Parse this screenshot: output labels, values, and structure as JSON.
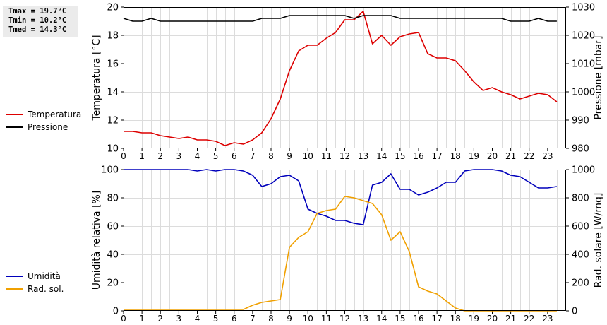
{
  "stats": {
    "tmax": "Tmax = 19.7°C",
    "tmin": "Tmin = 10.2°C",
    "tmed": "Tmed = 14.3°C"
  },
  "chart_data": [
    {
      "type": "line",
      "ylabel": "Temperatura [°C]",
      "y2label": "Pressione [mbar]",
      "ylim": [
        10,
        20
      ],
      "y2lim": [
        980,
        1030
      ],
      "xlim": [
        0,
        24
      ],
      "yticks": [
        "10",
        "12",
        "14",
        "16",
        "18",
        "20"
      ],
      "y2ticks": [
        "980",
        "990",
        "1000",
        "1010",
        "1020",
        "1030"
      ],
      "xticks": [
        "0",
        "1",
        "2",
        "3",
        "4",
        "5",
        "6",
        "7",
        "8",
        "9",
        "10",
        "11",
        "12",
        "13",
        "14",
        "15",
        "16",
        "17",
        "18",
        "19",
        "20",
        "21",
        "22",
        "23"
      ],
      "grid": true,
      "legend_placement": "left",
      "series": [
        {
          "name": "Temperatura",
          "color": "#dd0000",
          "axis": "left",
          "x": [
            0,
            0.5,
            1,
            1.5,
            2,
            2.5,
            3,
            3.5,
            4,
            4.5,
            5,
            5.5,
            6,
            6.5,
            7,
            7.5,
            8,
            8.5,
            9,
            9.5,
            10,
            10.5,
            11,
            11.5,
            12,
            12.5,
            13,
            13.5,
            14,
            14.5,
            15,
            15.5,
            16,
            16.5,
            17,
            17.5,
            18,
            18.5,
            19,
            19.5,
            20,
            20.5,
            21,
            21.5,
            22,
            22.5,
            23,
            23.5
          ],
          "values": [
            11.2,
            11.2,
            11.1,
            11.1,
            10.9,
            10.8,
            10.7,
            10.8,
            10.6,
            10.6,
            10.5,
            10.2,
            10.4,
            10.3,
            10.6,
            11.1,
            12.1,
            13.5,
            15.5,
            16.9,
            17.3,
            17.3,
            17.8,
            18.2,
            19.1,
            19.1,
            19.7,
            17.4,
            18.0,
            17.3,
            17.9,
            18.1,
            18.2,
            16.7,
            16.4,
            16.4,
            16.2,
            15.5,
            14.7,
            14.1,
            14.3,
            14.0,
            13.8,
            13.5,
            13.7,
            13.9,
            13.8,
            13.3
          ]
        },
        {
          "name": "Pressione",
          "color": "#000000",
          "axis": "right",
          "x": [
            0,
            0.5,
            1,
            1.5,
            2,
            2.5,
            3,
            3.5,
            4,
            4.5,
            5,
            5.5,
            6,
            6.5,
            7,
            7.5,
            8,
            8.5,
            9,
            9.5,
            10,
            10.5,
            11,
            11.5,
            12,
            12.5,
            13,
            13.5,
            14,
            14.5,
            15,
            15.5,
            16,
            16.5,
            17,
            17.5,
            18,
            18.5,
            19,
            19.5,
            20,
            20.5,
            21,
            21.5,
            22,
            22.5,
            23,
            23.5
          ],
          "values": [
            1026,
            1025,
            1025,
            1026,
            1025,
            1025,
            1025,
            1025,
            1025,
            1025,
            1025,
            1025,
            1025,
            1025,
            1025,
            1026,
            1026,
            1026,
            1027,
            1027,
            1027,
            1027,
            1027,
            1027,
            1027,
            1026,
            1027,
            1027,
            1027,
            1027,
            1026,
            1026,
            1026,
            1026,
            1026,
            1026,
            1026,
            1026,
            1026,
            1026,
            1026,
            1026,
            1025,
            1025,
            1025,
            1026,
            1025,
            1025
          ]
        }
      ]
    },
    {
      "type": "line",
      "ylabel": "Umidità relativa [%]",
      "y2label": "Rad. solare [W/mq]",
      "ylim": [
        0,
        100
      ],
      "y2lim": [
        0,
        1000
      ],
      "xlim": [
        0,
        24
      ],
      "yticks": [
        "0",
        "20",
        "40",
        "60",
        "80",
        "100"
      ],
      "y2ticks": [
        "0",
        "200",
        "400",
        "600",
        "800",
        "1000"
      ],
      "xticks": [
        "0",
        "1",
        "2",
        "3",
        "4",
        "5",
        "6",
        "7",
        "8",
        "9",
        "10",
        "11",
        "12",
        "13",
        "14",
        "15",
        "16",
        "17",
        "18",
        "19",
        "20",
        "21",
        "22",
        "23"
      ],
      "grid": true,
      "legend_placement": "left",
      "series": [
        {
          "name": "Umidità",
          "color": "#0000bb",
          "axis": "left",
          "x": [
            0,
            0.5,
            1,
            1.5,
            2,
            2.5,
            3,
            3.5,
            4,
            4.5,
            5,
            5.5,
            6,
            6.5,
            7,
            7.5,
            8,
            8.5,
            9,
            9.5,
            10,
            10.5,
            11,
            11.5,
            12,
            12.5,
            13,
            13.5,
            14,
            14.5,
            15,
            15.5,
            16,
            16.5,
            17,
            17.5,
            18,
            18.5,
            19,
            19.5,
            20,
            20.5,
            21,
            21.5,
            22,
            22.5,
            23,
            23.5
          ],
          "values": [
            100,
            100,
            100,
            100,
            100,
            100,
            100,
            100,
            99,
            100,
            99,
            100,
            100,
            99,
            96,
            88,
            90,
            95,
            96,
            92,
            72,
            69,
            67,
            64,
            64,
            62,
            61,
            89,
            91,
            97,
            86,
            86,
            82,
            84,
            87,
            91,
            91,
            99,
            100,
            100,
            100,
            99,
            96,
            95,
            91,
            87,
            87,
            88
          ]
        },
        {
          "name": "Rad. sol.",
          "color": "#f0a000",
          "axis": "right",
          "x": [
            0,
            0.5,
            1,
            1.5,
            2,
            2.5,
            3,
            3.5,
            4,
            4.5,
            5,
            5.5,
            6,
            6.5,
            7,
            7.5,
            8,
            8.5,
            9,
            9.5,
            10,
            10.5,
            11,
            11.5,
            12,
            12.5,
            13,
            13.5,
            14,
            14.5,
            15,
            15.5,
            16,
            16.5,
            17,
            17.5,
            18,
            18.5,
            19,
            19.5,
            20,
            20.5,
            21,
            21.5,
            22,
            22.5,
            23,
            23.5
          ],
          "values": [
            10,
            10,
            10,
            10,
            10,
            10,
            10,
            10,
            10,
            10,
            10,
            10,
            10,
            10,
            40,
            60,
            70,
            80,
            450,
            520,
            560,
            690,
            710,
            720,
            810,
            800,
            780,
            760,
            680,
            500,
            560,
            420,
            170,
            140,
            120,
            70,
            20,
            0,
            0,
            0,
            0,
            0,
            0,
            0,
            0,
            0,
            0,
            0
          ]
        }
      ]
    }
  ]
}
